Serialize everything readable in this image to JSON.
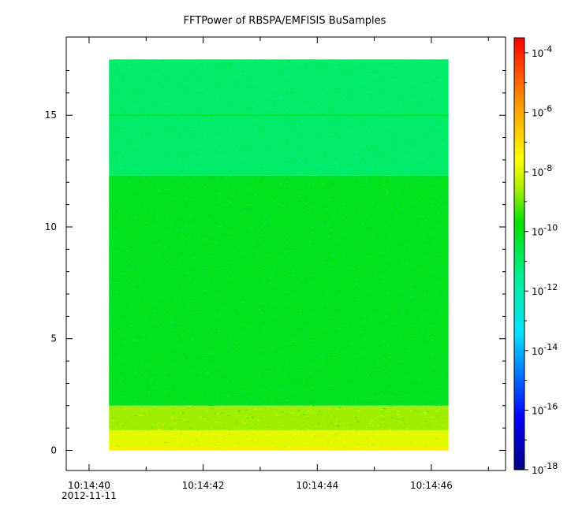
{
  "chart_data": {
    "type": "heatmap",
    "title": "FFTPower of RBSPA/EMFISIS  BuSamples",
    "xlabel": "",
    "ylabel": "",
    "x_ticks": [
      {
        "label": "10:14:40",
        "sublabel": "2012-11-11"
      },
      {
        "label": "10:14:42",
        "sublabel": ""
      },
      {
        "label": "10:14:44",
        "sublabel": ""
      },
      {
        "label": "10:14:46",
        "sublabel": ""
      }
    ],
    "x_range_seconds": [
      39.6,
      47.3
    ],
    "data_x_range_seconds": [
      40.35,
      46.3
    ],
    "ylim": [
      -0.9,
      18.5
    ],
    "y_ticks": [
      0,
      5,
      10,
      15
    ],
    "data_y_range": [
      0,
      17.5
    ],
    "colorbar": {
      "scale": "log",
      "range_exponent": [
        -18,
        -3.5
      ],
      "tick_base": "10",
      "tick_exponents": [
        "-18",
        "-16",
        "-14",
        "-12",
        "-10",
        "-8",
        "-6",
        "-4"
      ]
    },
    "bands": [
      {
        "y0": 12.3,
        "y1": 17.5,
        "log_power": -11.0
      },
      {
        "y0": 2.0,
        "y1": 12.3,
        "log_power": -10.1
      },
      {
        "y0": 0.9,
        "y1": 2.0,
        "log_power": -8.6
      },
      {
        "y0": 0.0,
        "y1": 0.9,
        "log_power": -7.9
      }
    ],
    "features": [
      {
        "kind": "line",
        "y": 15.0,
        "log_power": -10.2
      },
      {
        "kind": "edge",
        "y": 0.05,
        "log_power": -7.2
      }
    ]
  }
}
